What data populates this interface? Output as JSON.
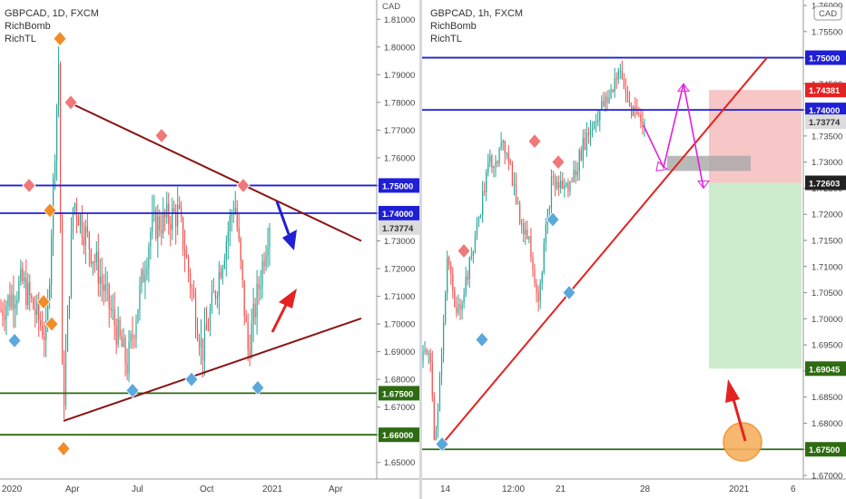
{
  "colors": {
    "up_candle": "#26a69a",
    "down_candle": "#ef5350",
    "blue_line": "#1f1fd6",
    "green_line": "#2e6b12",
    "trend_red": "#8b1414",
    "bright_red": "#e52222",
    "magenta": "#e020e0",
    "diamond_red": "#f07878",
    "diamond_orange": "#f28c28",
    "diamond_blue": "#5aa8dc",
    "stop_zone": "#f7c7c7",
    "target_zone": "#cdeccd",
    "entry_box": "#a8a8a8",
    "circle_fill": "#f6b060"
  },
  "chart_data": [
    {
      "type": "candlestick",
      "symbol_label": "GBPCAD, 1D, FXCM",
      "indicators": [
        "RichBomb",
        "RichTL"
      ],
      "currency_label": "CAD",
      "ylim": [
        1.645,
        1.815
      ],
      "y_ticks": [
        "1.81000",
        "1.80000",
        "1.79000",
        "1.78000",
        "1.77000",
        "1.76000",
        "1.75000",
        "1.74000",
        "1.73000",
        "1.72000",
        "1.71000",
        "1.70000",
        "1.69000",
        "1.68000",
        "1.67000",
        "1.66000",
        "1.65000"
      ],
      "x_ticks": [
        "2020",
        "Apr",
        "Jul",
        "Oct",
        "2021",
        "Apr"
      ],
      "series_range": {
        "start_price": 1.705,
        "min": 1.66,
        "max": 1.805
      },
      "horizontal_levels": [
        {
          "price": 1.75,
          "label": "1.75000",
          "color": "blue"
        },
        {
          "price": 1.74,
          "label": "1.74000",
          "color": "blue"
        },
        {
          "price": 1.675,
          "label": "1.67500",
          "color": "green"
        },
        {
          "price": 1.66,
          "label": "1.66000",
          "color": "green"
        }
      ],
      "current_price": {
        "price": 1.73774,
        "label": "1.73774"
      },
      "trendlines": [
        {
          "color": "dark-red",
          "from": {
            "x": "Mar 2020",
            "price": 1.78
          },
          "to": {
            "x": "Mar 2021",
            "price": 1.73
          }
        },
        {
          "color": "dark-red",
          "from": {
            "x": "Mar 2020",
            "price": 1.665
          },
          "to": {
            "x": "Mar 2021",
            "price": 1.702
          }
        }
      ],
      "signals": [
        {
          "x": "Jan 2020",
          "price": 1.75,
          "kind": "red"
        },
        {
          "x": "Jan 2020",
          "price": 1.694,
          "kind": "blue"
        },
        {
          "x": "Feb 2020",
          "price": 1.708,
          "kind": "orange"
        },
        {
          "x": "Feb 2020",
          "price": 1.741,
          "kind": "orange"
        },
        {
          "x": "Feb 2020",
          "price": 1.7,
          "kind": "orange"
        },
        {
          "x": "Mar 2020",
          "price": 1.803,
          "kind": "orange"
        },
        {
          "x": "Mar 2020",
          "price": 1.655,
          "kind": "orange"
        },
        {
          "x": "Mar 2020",
          "price": 1.78,
          "kind": "red"
        },
        {
          "x": "Jun 2020",
          "price": 1.676,
          "kind": "blue"
        },
        {
          "x": "Jul 2020",
          "price": 1.768,
          "kind": "red"
        },
        {
          "x": "Sep 2020",
          "price": 1.68,
          "kind": "blue"
        },
        {
          "x": "Nov 2020",
          "price": 1.75,
          "kind": "red"
        },
        {
          "x": "Dec 2020",
          "price": 1.677,
          "kind": "blue"
        }
      ],
      "arrows": [
        {
          "color": "blue",
          "direction": "down"
        },
        {
          "color": "red",
          "direction": "up"
        }
      ]
    },
    {
      "type": "candlestick",
      "symbol_label": "GBPCAD, 1h, FXCM",
      "indicators": [
        "RichBomb",
        "RichTL"
      ],
      "currency_label": "CAD",
      "ylim": [
        1.67,
        1.76
      ],
      "y_ticks": [
        "1.76000",
        "1.75500",
        "1.75000",
        "1.74500",
        "1.74000",
        "1.73500",
        "1.73000",
        "1.72500",
        "1.72000",
        "1.71500",
        "1.71000",
        "1.70500",
        "1.70000",
        "1.69500",
        "1.69000",
        "1.68500",
        "1.68000",
        "1.67500",
        "1.67000"
      ],
      "x_ticks": [
        "14",
        "12:00",
        "21",
        "28",
        "2021",
        "6"
      ],
      "series_range": {
        "start_price": 1.692,
        "min": 1.676,
        "max": 1.7478
      },
      "horizontal_levels": [
        {
          "price": 1.75,
          "label": "1.75000",
          "color": "blue"
        },
        {
          "price": 1.74,
          "label": "1.74000",
          "color": "blue"
        },
        {
          "price": 1.675,
          "label": "1.67500",
          "color": "green"
        }
      ],
      "price_labels": [
        {
          "price": 1.74381,
          "label": "1.74381",
          "style": "stop"
        },
        {
          "price": 1.73774,
          "label": "1.73774",
          "style": "current"
        },
        {
          "price": 1.72603,
          "label": "1.72603",
          "style": "entry"
        },
        {
          "price": 1.69045,
          "label": "1.69045",
          "style": "target"
        }
      ],
      "position": {
        "entry": 1.72603,
        "stop": 1.74381,
        "target": 1.69045
      },
      "trendlines": [
        {
          "color": "bright-red",
          "from": {
            "x": "Dec 11",
            "price": 1.676
          },
          "to": {
            "x": "Jan 3",
            "price": 1.75
          }
        }
      ],
      "signals": [
        {
          "x": "Dec 11",
          "price": 1.676,
          "kind": "blue"
        },
        {
          "x": "Dec 14",
          "price": 1.713,
          "kind": "red"
        },
        {
          "x": "Dec 17",
          "price": 1.696,
          "kind": "blue"
        },
        {
          "x": "Dec 19",
          "price": 1.734,
          "kind": "red"
        },
        {
          "x": "Dec 20",
          "price": 1.719,
          "kind": "blue"
        },
        {
          "x": "Dec 21",
          "price": 1.73,
          "kind": "red"
        },
        {
          "x": "Dec 21",
          "price": 1.705,
          "kind": "blue"
        }
      ],
      "projection": {
        "color": "magenta",
        "path_prices": [
          1.737,
          1.729,
          1.745,
          1.725
        ]
      },
      "arrows": [
        {
          "color": "red",
          "direction": "up"
        }
      ]
    }
  ]
}
